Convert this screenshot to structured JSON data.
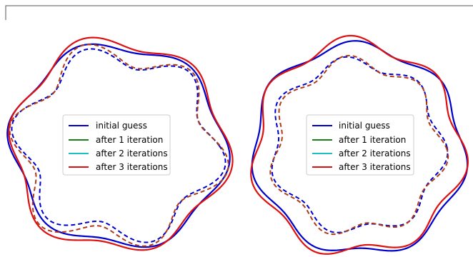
{
  "legend": {
    "entries": [
      {
        "label": "initial guess",
        "color": "#0000cc"
      },
      {
        "label": "after 1 iteration",
        "color": "#1a7f1a"
      },
      {
        "label": "after 2 iterations",
        "color": "#1fbfbf"
      },
      {
        "label": "after 3 iterations",
        "color": "#dd1111"
      }
    ]
  },
  "panels": [
    {
      "name": "left-panel",
      "outer_lobes": 6,
      "inner_lobes": 6
    },
    {
      "name": "right-panel",
      "outer_lobes": 7,
      "inner_lobes": 7
    }
  ],
  "colors": {
    "initial": "#0000cc",
    "iter1": "#1a7f1a",
    "iter2": "#1fbfbf",
    "iter3": "#dd1111",
    "inner_dashed_late": "#b03a1a",
    "frame": "#555555"
  }
}
